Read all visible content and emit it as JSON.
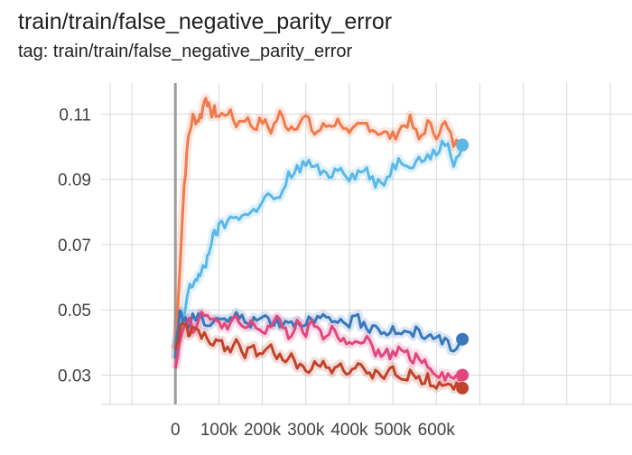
{
  "header": {
    "title": "train/train/false_negative_parity_error",
    "tag": "tag: train/train/false_negative_parity_error"
  },
  "chart_data": {
    "type": "line",
    "xlim": [
      -150000,
      1050000
    ],
    "ylim": [
      0.021,
      0.1195
    ],
    "x_ticks": [
      0,
      100000,
      200000,
      300000,
      400000,
      500000,
      600000
    ],
    "x_tick_labels": [
      "0",
      "100k",
      "200k",
      "300k",
      "400k",
      "500k",
      "600k"
    ],
    "y_ticks": [
      0.03,
      0.05,
      0.07,
      0.09,
      0.11
    ],
    "y_tick_labels": [
      "0.03",
      "0.05",
      "0.07",
      "0.09",
      "0.11"
    ],
    "grid": true,
    "legend": "none",
    "colors": {
      "orange": "#f07a4d",
      "light_blue": "#5bb8e6",
      "dark_blue": "#3a78bd",
      "pink": "#e3457d",
      "red": "#c1432b",
      "grid": "#d9d9d9",
      "zero_line": "#9e9e9e"
    },
    "series": [
      {
        "color_key": "orange",
        "x": [
          0,
          10000,
          20000,
          30000,
          40000,
          50000,
          60000,
          70000,
          80000,
          90000,
          100000,
          120000,
          140000,
          160000,
          180000,
          200000,
          220000,
          240000,
          260000,
          280000,
          300000,
          320000,
          340000,
          360000,
          380000,
          400000,
          420000,
          440000,
          460000,
          480000,
          500000,
          520000,
          540000,
          560000,
          580000,
          600000,
          620000,
          640000,
          660000
        ],
        "y": [
          0.035,
          0.063,
          0.088,
          0.103,
          0.109,
          0.108,
          0.11,
          0.116,
          0.11,
          0.111,
          0.109,
          0.111,
          0.107,
          0.109,
          0.106,
          0.108,
          0.105,
          0.11,
          0.106,
          0.107,
          0.109,
          0.104,
          0.106,
          0.107,
          0.108,
          0.103,
          0.106,
          0.107,
          0.105,
          0.104,
          0.103,
          0.106,
          0.108,
          0.102,
          0.107,
          0.104,
          0.107,
          0.101,
          0.1005
        ]
      },
      {
        "color_key": "light_blue",
        "x": [
          0,
          10000,
          20000,
          30000,
          40000,
          50000,
          60000,
          70000,
          80000,
          90000,
          100000,
          120000,
          140000,
          160000,
          180000,
          200000,
          220000,
          240000,
          260000,
          280000,
          300000,
          320000,
          340000,
          360000,
          380000,
          400000,
          420000,
          440000,
          460000,
          480000,
          500000,
          520000,
          540000,
          560000,
          580000,
          600000,
          620000,
          640000,
          660000
        ],
        "y": [
          0.038,
          0.042,
          0.048,
          0.056,
          0.058,
          0.06,
          0.061,
          0.064,
          0.07,
          0.073,
          0.075,
          0.077,
          0.079,
          0.079,
          0.08,
          0.084,
          0.085,
          0.083,
          0.091,
          0.093,
          0.095,
          0.094,
          0.091,
          0.092,
          0.094,
          0.091,
          0.092,
          0.093,
          0.088,
          0.089,
          0.094,
          0.096,
          0.095,
          0.096,
          0.097,
          0.098,
          0.102,
          0.095,
          0.1005
        ]
      },
      {
        "color_key": "dark_blue",
        "x": [
          0,
          10000,
          20000,
          30000,
          40000,
          60000,
          80000,
          100000,
          120000,
          140000,
          160000,
          180000,
          200000,
          220000,
          240000,
          260000,
          280000,
          300000,
          320000,
          340000,
          360000,
          380000,
          400000,
          420000,
          440000,
          460000,
          480000,
          500000,
          520000,
          540000,
          560000,
          580000,
          600000,
          620000,
          640000,
          660000
        ],
        "y": [
          0.035,
          0.05,
          0.047,
          0.045,
          0.048,
          0.047,
          0.046,
          0.048,
          0.047,
          0.048,
          0.047,
          0.046,
          0.048,
          0.047,
          0.046,
          0.047,
          0.046,
          0.047,
          0.046,
          0.048,
          0.045,
          0.047,
          0.046,
          0.047,
          0.044,
          0.046,
          0.043,
          0.044,
          0.043,
          0.042,
          0.044,
          0.041,
          0.043,
          0.04,
          0.037,
          0.041
        ]
      },
      {
        "color_key": "pink",
        "x": [
          0,
          10000,
          20000,
          30000,
          40000,
          60000,
          80000,
          100000,
          120000,
          140000,
          160000,
          180000,
          200000,
          220000,
          240000,
          260000,
          280000,
          300000,
          320000,
          340000,
          360000,
          380000,
          400000,
          420000,
          440000,
          460000,
          480000,
          500000,
          520000,
          540000,
          560000,
          580000,
          600000,
          620000,
          640000,
          660000
        ],
        "y": [
          0.032,
          0.042,
          0.045,
          0.048,
          0.044,
          0.049,
          0.046,
          0.047,
          0.044,
          0.047,
          0.044,
          0.046,
          0.043,
          0.045,
          0.047,
          0.042,
          0.045,
          0.043,
          0.046,
          0.041,
          0.045,
          0.04,
          0.041,
          0.039,
          0.041,
          0.036,
          0.037,
          0.036,
          0.038,
          0.035,
          0.036,
          0.033,
          0.031,
          0.03,
          0.029,
          0.03
        ]
      },
      {
        "color_key": "red",
        "x": [
          0,
          10000,
          20000,
          30000,
          40000,
          60000,
          80000,
          100000,
          120000,
          140000,
          160000,
          180000,
          200000,
          220000,
          240000,
          260000,
          280000,
          300000,
          320000,
          340000,
          360000,
          380000,
          400000,
          420000,
          440000,
          460000,
          480000,
          500000,
          520000,
          540000,
          560000,
          580000,
          600000,
          620000,
          640000,
          660000
        ],
        "y": [
          0.038,
          0.043,
          0.046,
          0.043,
          0.044,
          0.042,
          0.04,
          0.041,
          0.038,
          0.04,
          0.037,
          0.038,
          0.036,
          0.038,
          0.035,
          0.036,
          0.033,
          0.032,
          0.033,
          0.035,
          0.032,
          0.033,
          0.031,
          0.033,
          0.029,
          0.031,
          0.03,
          0.031,
          0.029,
          0.03,
          0.028,
          0.029,
          0.027,
          0.028,
          0.026,
          0.026
        ]
      }
    ]
  }
}
